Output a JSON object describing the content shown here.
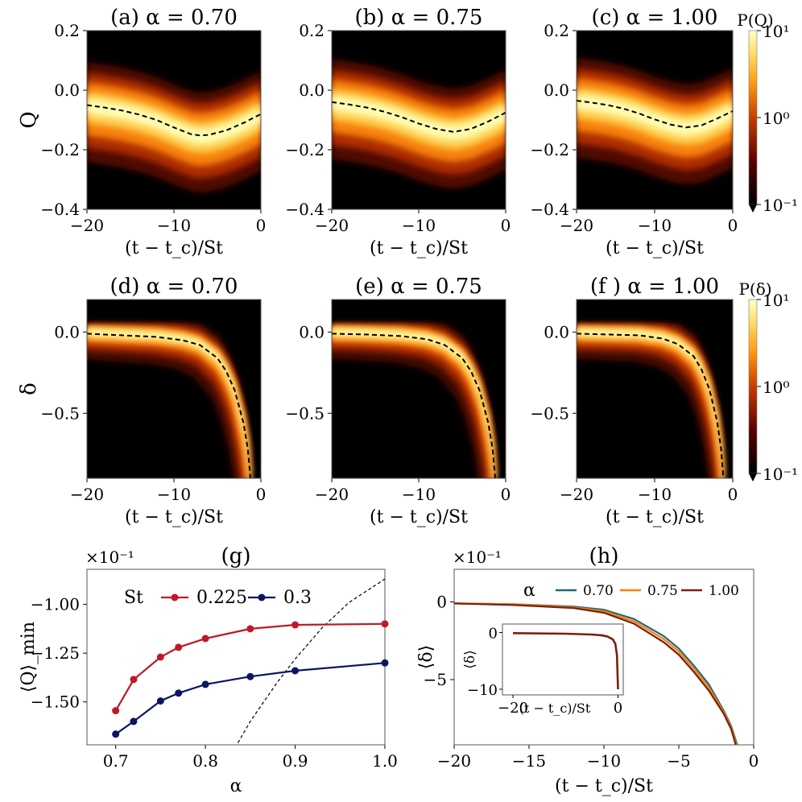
{
  "chart_data": [
    {
      "id": "a",
      "type": "heatmap",
      "title": "(a) α = 0.70",
      "xlabel": "(t − t_c)/St",
      "ylabel": "Q",
      "xlim": [
        -20,
        0
      ],
      "ylim": [
        -0.4,
        0.2
      ],
      "xticks": [
        "−20",
        "−10",
        "0"
      ],
      "yticks": [
        "−0.4",
        "−0.2",
        "0.0",
        "0.2"
      ],
      "mean_curve": {
        "x": [
          -20,
          -18,
          -16,
          -14,
          -12,
          -10,
          -8,
          -7,
          -6,
          -4,
          -2,
          0
        ],
        "y": [
          -0.05,
          -0.058,
          -0.068,
          -0.082,
          -0.1,
          -0.125,
          -0.148,
          -0.152,
          -0.15,
          -0.135,
          -0.11,
          -0.08
        ]
      }
    },
    {
      "id": "b",
      "type": "heatmap",
      "title": "(b) α = 0.75",
      "xlabel": "(t − t_c)/St",
      "ylabel": "",
      "xlim": [
        -20,
        0
      ],
      "ylim": [
        -0.4,
        0.2
      ],
      "xticks": [
        "−20",
        "−10",
        "0"
      ],
      "yticks": [
        "−0.4",
        "−0.2",
        "0.0",
        "0.2"
      ],
      "mean_curve": {
        "x": [
          -20,
          -18,
          -16,
          -14,
          -12,
          -10,
          -8,
          -6,
          -4,
          -2,
          0
        ],
        "y": [
          -0.04,
          -0.048,
          -0.058,
          -0.072,
          -0.09,
          -0.112,
          -0.13,
          -0.14,
          -0.13,
          -0.105,
          -0.075
        ]
      }
    },
    {
      "id": "c",
      "type": "heatmap",
      "title": "(c) α = 1.00",
      "xlabel": "(t − t_c)/St",
      "ylabel": "",
      "xlim": [
        -20,
        0
      ],
      "ylim": [
        -0.4,
        0.2
      ],
      "xticks": [
        "−20",
        "−10",
        "0"
      ],
      "yticks": [
        "−0.4",
        "−0.2",
        "0.0",
        "0.2"
      ],
      "mean_curve": {
        "x": [
          -20,
          -18,
          -16,
          -14,
          -12,
          -10,
          -8,
          -6,
          -4,
          -2,
          0
        ],
        "y": [
          -0.035,
          -0.042,
          -0.05,
          -0.062,
          -0.078,
          -0.098,
          -0.115,
          -0.125,
          -0.118,
          -0.095,
          -0.07
        ]
      }
    },
    {
      "id": "d",
      "type": "heatmap",
      "title": "(d) α = 0.70",
      "xlabel": "(t − t_c)/St",
      "ylabel": "δ",
      "xlim": [
        -20,
        0
      ],
      "ylim": [
        -0.9,
        0.2
      ],
      "xticks": [
        "−20",
        "−10",
        "0"
      ],
      "yticks": [
        "−0.5",
        "0.0"
      ],
      "mean_curve": {
        "x": [
          -20,
          -16,
          -12,
          -9,
          -7,
          -5,
          -4,
          -3,
          -2,
          -1.5,
          -1.2
        ],
        "y": [
          -0.01,
          -0.02,
          -0.03,
          -0.05,
          -0.08,
          -0.16,
          -0.24,
          -0.36,
          -0.56,
          -0.72,
          -0.9
        ]
      }
    },
    {
      "id": "e",
      "type": "heatmap",
      "title": "(e) α = 0.75",
      "xlabel": "(t − t_c)/St",
      "ylabel": "",
      "xlim": [
        -20,
        0
      ],
      "ylim": [
        -0.9,
        0.2
      ],
      "xticks": [
        "−20",
        "−10",
        "0"
      ],
      "yticks": [
        "−0.5",
        "0.0"
      ],
      "mean_curve": {
        "x": [
          -20,
          -16,
          -12,
          -9,
          -7,
          -5,
          -4,
          -3,
          -2,
          -1.5,
          -1.2
        ],
        "y": [
          -0.01,
          -0.015,
          -0.025,
          -0.045,
          -0.08,
          -0.16,
          -0.24,
          -0.36,
          -0.56,
          -0.72,
          -0.9
        ]
      }
    },
    {
      "id": "f",
      "type": "heatmap",
      "title": "(f ) α = 1.00",
      "xlabel": "(t − t_c)/St",
      "ylabel": "",
      "xlim": [
        -20,
        0
      ],
      "ylim": [
        -0.9,
        0.2
      ],
      "xticks": [
        "−20",
        "−10",
        "0"
      ],
      "yticks": [
        "−0.5",
        "0.0"
      ],
      "mean_curve": {
        "x": [
          -20,
          -16,
          -12,
          -9,
          -7,
          -5,
          -4,
          -3,
          -2,
          -1.5,
          -1.2
        ],
        "y": [
          -0.01,
          -0.015,
          -0.02,
          -0.04,
          -0.075,
          -0.15,
          -0.23,
          -0.35,
          -0.55,
          -0.72,
          -0.9
        ]
      }
    },
    {
      "id": "g",
      "type": "line",
      "title": "(g)",
      "xlabel": "α",
      "ylabel": "⟨Q⟩_min",
      "offset": "×10⁻¹",
      "xlim": [
        0.668,
        1.0
      ],
      "ylim": [
        -1.72,
        -0.82
      ],
      "xticks": [
        "0.7",
        "0.8",
        "0.9",
        "1.0"
      ],
      "yticks": [
        "−1.50",
        "−1.25",
        "−1.00"
      ],
      "legend_title": "St",
      "legend_position": "top",
      "series": [
        {
          "name": "0.225",
          "color": "#c0182a",
          "x": [
            0.7,
            0.72,
            0.75,
            0.77,
            0.8,
            0.85,
            0.9,
            1.0
          ],
          "y": [
            -1.545,
            -1.385,
            -1.27,
            -1.22,
            -1.175,
            -1.125,
            -1.105,
            -1.1
          ]
        },
        {
          "name": "0.3",
          "color": "#0b1560",
          "x": [
            0.7,
            0.72,
            0.75,
            0.77,
            0.8,
            0.85,
            0.9,
            1.0
          ],
          "y": [
            -1.665,
            -1.6,
            -1.495,
            -1.455,
            -1.41,
            -1.37,
            -1.34,
            -1.3
          ]
        }
      ],
      "dashed_curve": {
        "x": [
          0.83,
          0.85,
          0.88,
          0.9,
          0.93,
          0.96,
          1.0
        ],
        "y": [
          -1.76,
          -1.6,
          -1.4,
          -1.28,
          -1.12,
          -0.99,
          -0.87
        ]
      }
    },
    {
      "id": "h",
      "type": "line",
      "title": "(h)",
      "xlabel": "(t − t_c)/St",
      "ylabel": "⟨δ⟩",
      "offset": "×10⁻¹",
      "xlim": [
        -20,
        0
      ],
      "ylim": [
        -9.2,
        2.1
      ],
      "xticks": [
        "−20",
        "−15",
        "−10",
        "−5",
        "0"
      ],
      "yticks": [
        "−5",
        "0"
      ],
      "legend_title": "α",
      "legend_position": "top",
      "series": [
        {
          "name": "0.70",
          "color": "#1f6a6e",
          "x": [
            -20,
            -16,
            -12,
            -10,
            -8,
            -6,
            -5,
            -4,
            -3,
            -2,
            -1.5,
            -1.1
          ],
          "y": [
            -0.1,
            -0.15,
            -0.3,
            -0.5,
            -1.1,
            -2.2,
            -3.0,
            -4.1,
            -5.3,
            -7.0,
            -8.0,
            -9.2
          ]
        },
        {
          "name": "0.75",
          "color": "#ff7f0e",
          "x": [
            -20,
            -16,
            -12,
            -10,
            -8,
            -6,
            -5,
            -4,
            -3,
            -2,
            -1.5,
            -1.15
          ],
          "y": [
            -0.1,
            -0.15,
            -0.35,
            -0.6,
            -1.25,
            -2.4,
            -3.2,
            -4.3,
            -5.5,
            -7.1,
            -8.1,
            -9.2
          ]
        },
        {
          "name": "1.00",
          "color": "#7a1f0b",
          "x": [
            -20,
            -16,
            -12,
            -10,
            -8,
            -6,
            -5,
            -4,
            -3,
            -2,
            -1.5,
            -1.2
          ],
          "y": [
            -0.1,
            -0.2,
            -0.4,
            -0.7,
            -1.4,
            -2.6,
            -3.4,
            -4.5,
            -5.7,
            -7.2,
            -8.2,
            -9.2
          ]
        }
      ],
      "inset": {
        "xlabel": "(t − t_c)/St",
        "ylabel": "⟨δ⟩",
        "xlim": [
          -22,
          1
        ],
        "ylim": [
          -11,
          1.5
        ],
        "xticks": [
          "−20",
          "0"
        ],
        "yticks": [
          "−10",
          "−5",
          "0"
        ],
        "x": [
          -20,
          -10,
          -5,
          -3,
          -2,
          -1,
          -0.5,
          -0.2,
          0
        ],
        "y": [
          -0.1,
          -0.2,
          -0.35,
          -0.5,
          -0.7,
          -1.2,
          -2,
          -4,
          -10
        ]
      }
    },
    {
      "id": "cbarQ",
      "type": "colorbar",
      "label": "P(Q)",
      "ticks": [
        "10¹",
        "10⁰",
        "10⁻¹"
      ]
    },
    {
      "id": "cbarD",
      "type": "colorbar",
      "label": "P(δ)",
      "ticks": [
        "10¹",
        "10⁰",
        "10⁻¹"
      ]
    }
  ]
}
